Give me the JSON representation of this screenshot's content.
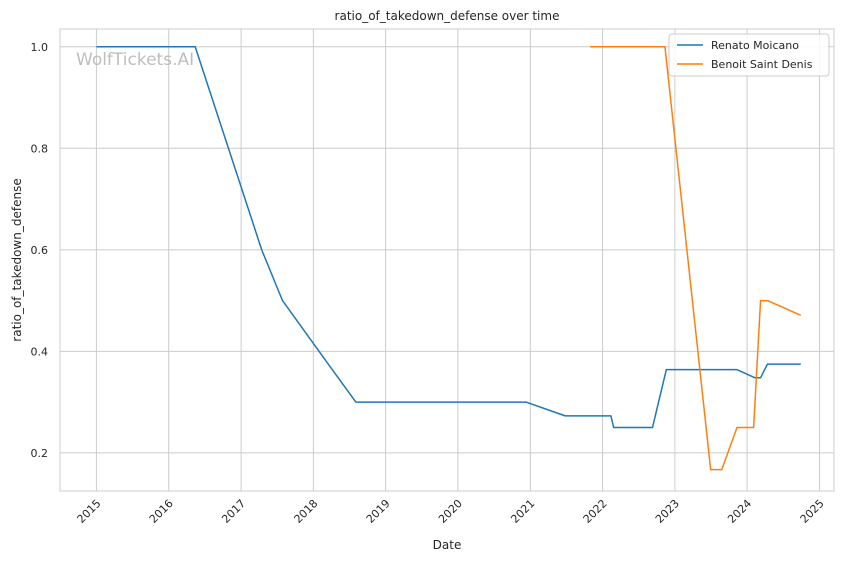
{
  "chart_data": {
    "type": "line",
    "title": "ratio_of_takedown_defense over time",
    "xlabel": "Date",
    "ylabel": "ratio_of_takedown_defense",
    "watermark": "WolfTickets.AI",
    "x_ticks": [
      "2015",
      "2016",
      "2017",
      "2018",
      "2019",
      "2020",
      "2021",
      "2022",
      "2023",
      "2024",
      "2025"
    ],
    "y_ticks": [
      "0.2",
      "0.4",
      "0.6",
      "0.8",
      "1.0"
    ],
    "xlim": [
      "2014-07-01",
      "2025-03-15"
    ],
    "ylim": [
      0.125,
      1.035
    ],
    "grid": true,
    "legend_position": "top-right",
    "colors": {
      "Renato Moicano": "#1f77b4",
      "Benoit Saint Denis": "#ff7f0e"
    },
    "series": [
      {
        "name": "Renato Moicano",
        "x": [
          "2015-01-01",
          "2016-05-14",
          "2017-04-15",
          "2017-07-29",
          "2018-03-17",
          "2018-08-04",
          "2020-12-12",
          "2021-06-26",
          "2022-02-12",
          "2022-02-26",
          "2022-09-10",
          "2022-11-19",
          "2023-11-11",
          "2024-02-10",
          "2024-03-09",
          "2024-04-13",
          "2024-09-28"
        ],
        "y": [
          1.0,
          1.0,
          0.6,
          0.5,
          0.375,
          0.3,
          0.3,
          0.273,
          0.273,
          0.25,
          0.25,
          0.364,
          0.364,
          0.348,
          0.348,
          0.375,
          0.375
        ]
      },
      {
        "name": "Benoit Saint Denis",
        "x": [
          "2021-10-30",
          "2022-11-12",
          "2023-07-01",
          "2023-08-26",
          "2023-11-11",
          "2024-02-03",
          "2024-03-09",
          "2024-04-13",
          "2024-09-28"
        ],
        "y": [
          1.0,
          1.0,
          0.167,
          0.167,
          0.25,
          0.25,
          0.5,
          0.5,
          0.471
        ]
      }
    ]
  }
}
